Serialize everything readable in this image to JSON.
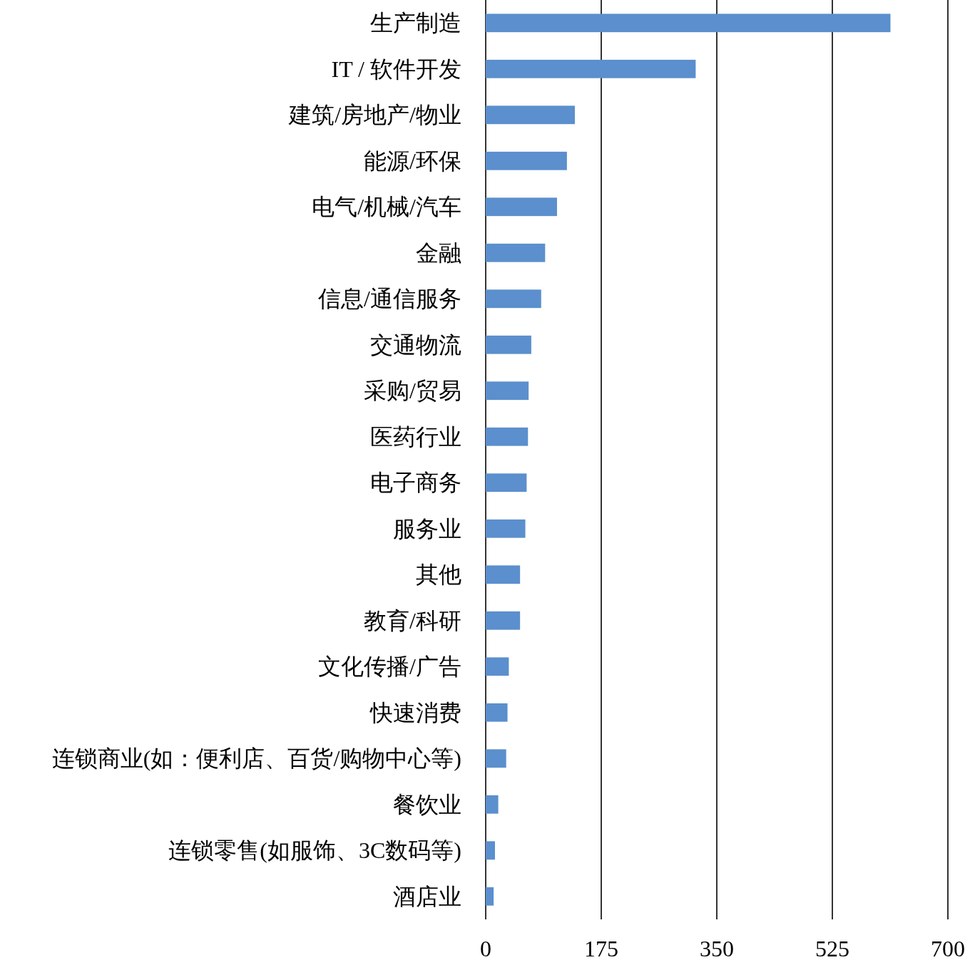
{
  "chart_data": {
    "type": "bar",
    "orientation": "horizontal",
    "grid": "x",
    "color": "#5b8fcd",
    "categories": [
      "生产制造",
      "IT / 软件开发",
      "建筑/房地产/物业",
      "能源/环保",
      "电气/机械/汽车",
      "金融",
      "信息/通信服务",
      "交通物流",
      "采购/贸易",
      "医药行业",
      "电子商务",
      "服务业",
      "其他",
      "教育/科研",
      "文化传播/广告",
      "快速消费",
      "连锁商业(如：便利店、百货/购物中心等)",
      "餐饮业",
      "连锁零售(如服饰、3C数码等)",
      "酒店业"
    ],
    "values": [
      613,
      318,
      135,
      123,
      108,
      90,
      84,
      69,
      65,
      64,
      62,
      60,
      52,
      52,
      35,
      33,
      31,
      19,
      14,
      12
    ],
    "xlim": [
      0,
      700
    ],
    "xticks": [
      0,
      175,
      350,
      525,
      700
    ]
  }
}
